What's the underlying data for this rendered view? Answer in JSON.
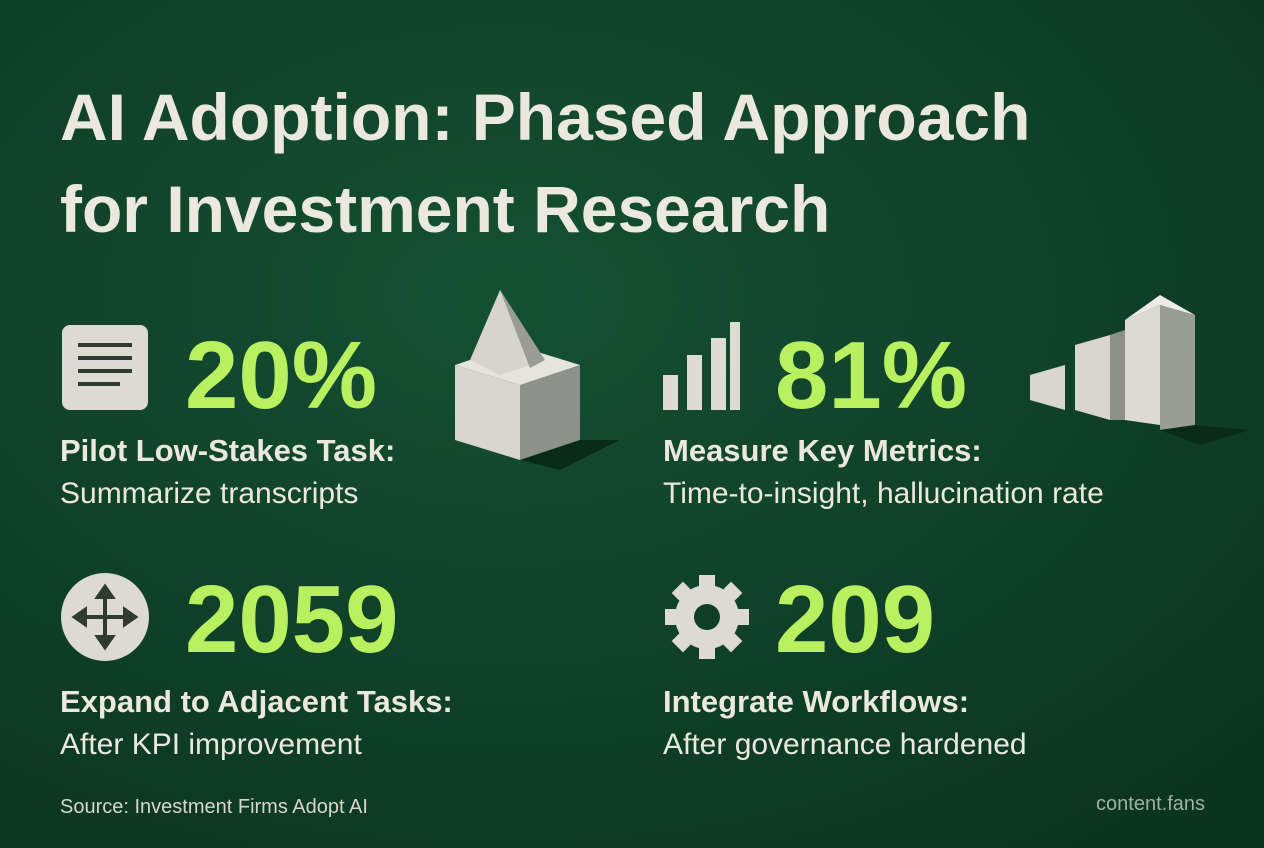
{
  "header": {
    "title_lines": [
      "AI Adoption: Phased Approach",
      "for Investment Research"
    ]
  },
  "items": [
    {
      "stat": "20%",
      "label": "Pilot Low-Stakes Task:",
      "description": "Summarize transcripts"
    },
    {
      "stat": "81%",
      "label": "Measure Key Metrics:",
      "description": "Time-to-insight, hallucination rate"
    },
    {
      "stat": "2059",
      "label": "Expand to Adjacent Tasks:",
      "description": "After KPI improvement"
    },
    {
      "stat": "209",
      "label": "Integrate Workflows:",
      "description": "After governance hardened"
    }
  ],
  "footer": {
    "source": "Source: Investment Firms Adopt AI",
    "brand": "content.fans"
  }
}
